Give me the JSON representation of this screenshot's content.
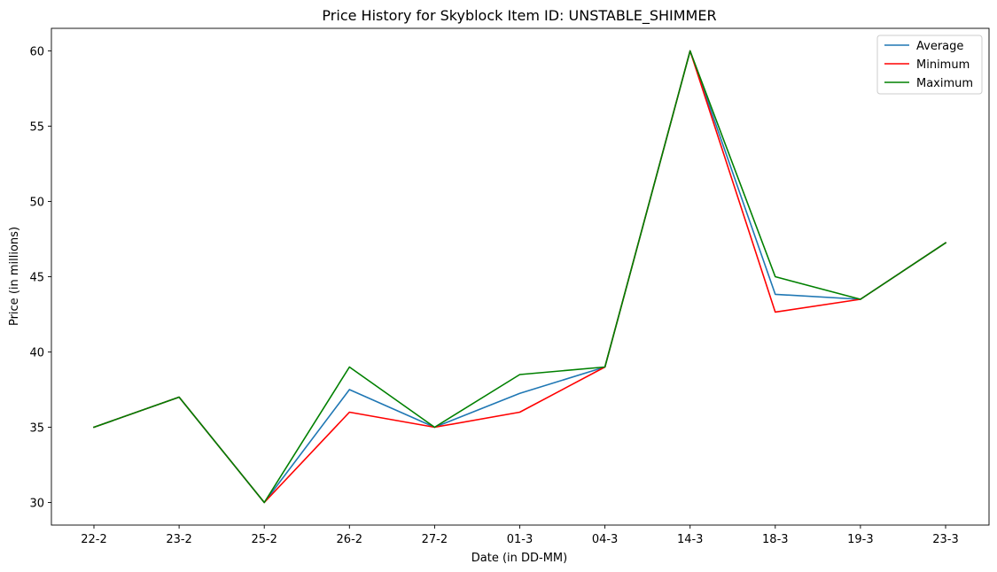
{
  "chart_data": {
    "type": "line",
    "title": "Price History for Skyblock Item ID: UNSTABLE_SHIMMER",
    "xlabel": "Date (in DD-MM)",
    "ylabel": "Price (in millions)",
    "categories": [
      "22-2",
      "23-2",
      "25-2",
      "26-2",
      "27-2",
      "01-3",
      "04-3",
      "14-3",
      "18-3",
      "19-3",
      "23-3"
    ],
    "ylim": [
      28.5,
      61.5
    ],
    "yticks": [
      30,
      35,
      40,
      45,
      50,
      55,
      60
    ],
    "grid": false,
    "legend_position": "top-right",
    "series": [
      {
        "name": "Average",
        "color": "#1f77b4",
        "values": [
          35,
          37,
          30,
          37.5,
          35,
          37.25,
          39,
          60,
          43.83,
          43.5,
          47.25
        ]
      },
      {
        "name": "Minimum",
        "color": "#ff0000",
        "values": [
          35,
          37,
          30,
          36,
          35,
          36,
          39,
          60,
          42.65,
          43.5,
          47.25
        ]
      },
      {
        "name": "Maximum",
        "color": "#008000",
        "values": [
          35,
          37,
          30,
          39,
          35,
          38.5,
          39,
          60,
          45,
          43.5,
          47.25
        ]
      }
    ]
  }
}
